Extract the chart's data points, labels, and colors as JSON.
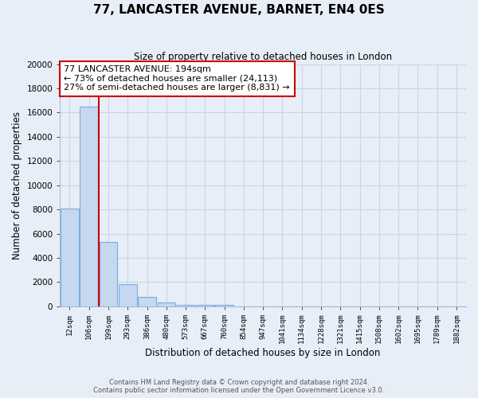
{
  "title": "77, LANCASTER AVENUE, BARNET, EN4 0ES",
  "subtitle": "Size of property relative to detached houses in London",
  "xlabel": "Distribution of detached houses by size in London",
  "ylabel": "Number of detached properties",
  "bar_labels": [
    "12sqm",
    "106sqm",
    "199sqm",
    "293sqm",
    "386sqm",
    "480sqm",
    "573sqm",
    "667sqm",
    "760sqm",
    "854sqm",
    "947sqm",
    "1041sqm",
    "1134sqm",
    "1228sqm",
    "1321sqm",
    "1415sqm",
    "1508sqm",
    "1602sqm",
    "1695sqm",
    "1789sqm",
    "1882sqm"
  ],
  "bar_values": [
    8100,
    16500,
    5300,
    1800,
    750,
    300,
    150,
    100,
    100,
    0,
    0,
    0,
    0,
    0,
    0,
    0,
    0,
    0,
    0,
    0,
    0
  ],
  "bar_color": "#c5d8f0",
  "bar_edge_color": "#7aadde",
  "vline_color": "#cc0000",
  "annotation_text": "77 LANCASTER AVENUE: 194sqm\n← 73% of detached houses are smaller (24,113)\n27% of semi-detached houses are larger (8,831) →",
  "annotation_box_color": "#ffffff",
  "annotation_box_edge": "#cc0000",
  "ylim": [
    0,
    20000
  ],
  "yticks": [
    0,
    2000,
    4000,
    6000,
    8000,
    10000,
    12000,
    14000,
    16000,
    18000,
    20000
  ],
  "footer1": "Contains HM Land Registry data © Crown copyright and database right 2024.",
  "footer2": "Contains public sector information licensed under the Open Government Licence v3.0.",
  "bg_color": "#e8eef8",
  "plot_bg_color": "#e8eef8",
  "grid_color": "#c8d4e8"
}
